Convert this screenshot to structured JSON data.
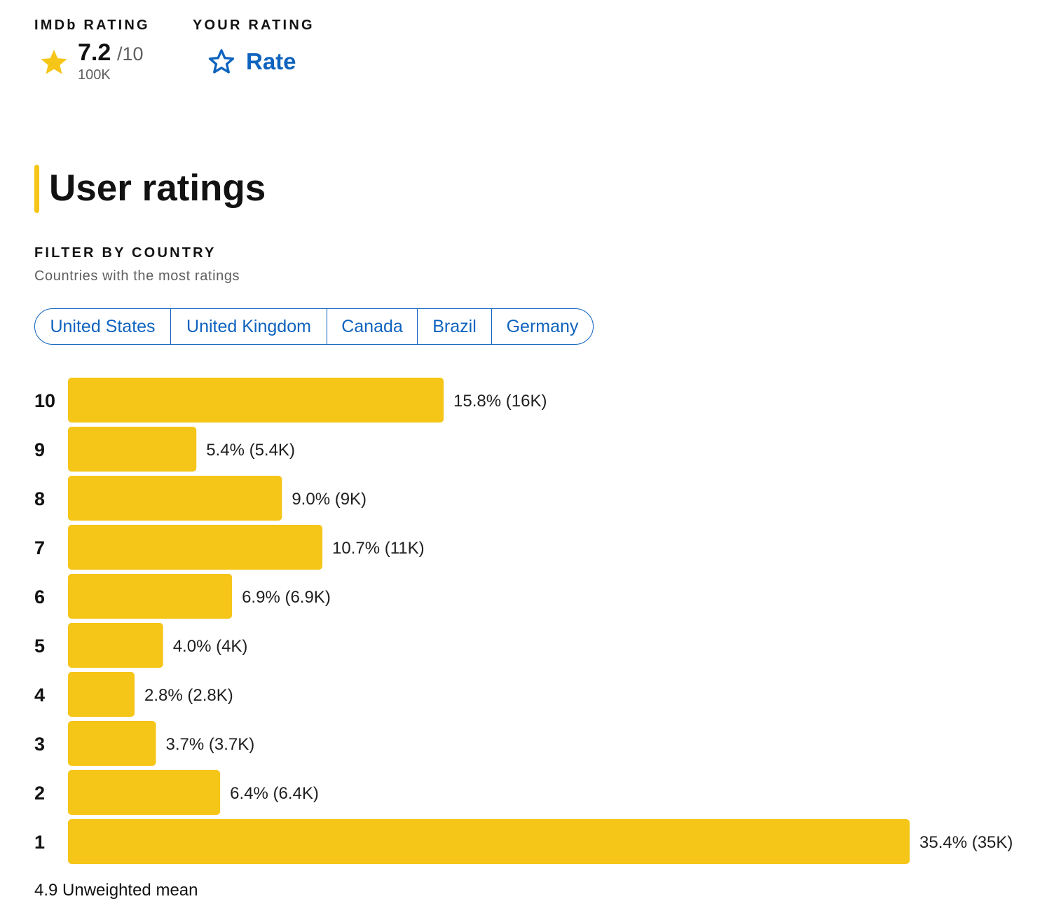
{
  "imdb_rating": {
    "label": "IMDb RATING",
    "value": "7.2",
    "max": "/10",
    "count": "100K",
    "star_icon": "star-filled-icon",
    "star_color": "#f5c518"
  },
  "your_rating": {
    "label": "YOUR RATING",
    "button_label": "Rate",
    "star_icon": "star-outline-icon",
    "color": "#0e63be"
  },
  "section": {
    "title": "User ratings",
    "accent_color": "#f5c518"
  },
  "filter": {
    "heading": "FILTER BY COUNTRY",
    "subheading": "Countries with the most ratings",
    "countries": [
      "United States",
      "United Kingdom",
      "Canada",
      "Brazil",
      "Germany"
    ]
  },
  "chart_data": {
    "type": "bar",
    "orientation": "horizontal",
    "title": "User ratings",
    "xlabel": "",
    "ylabel": "",
    "categories": [
      "10",
      "9",
      "8",
      "7",
      "6",
      "5",
      "4",
      "3",
      "2",
      "1"
    ],
    "values": [
      15.8,
      5.4,
      9.0,
      10.7,
      6.9,
      4.0,
      2.8,
      3.7,
      6.4,
      35.4
    ],
    "labels": [
      "15.8% (16K)",
      "5.4% (5.4K)",
      "9.0% (9K)",
      "10.7% (11K)",
      "6.9% (6.9K)",
      "4.0% (4K)",
      "2.8% (2.8K)",
      "3.7% (3.7K)",
      "6.4% (6.4K)",
      "35.4% (35K)"
    ],
    "bar_color": "#f5c518",
    "xlim": [
      0,
      35.4
    ]
  },
  "mean_text": "4.9 Unweighted mean"
}
